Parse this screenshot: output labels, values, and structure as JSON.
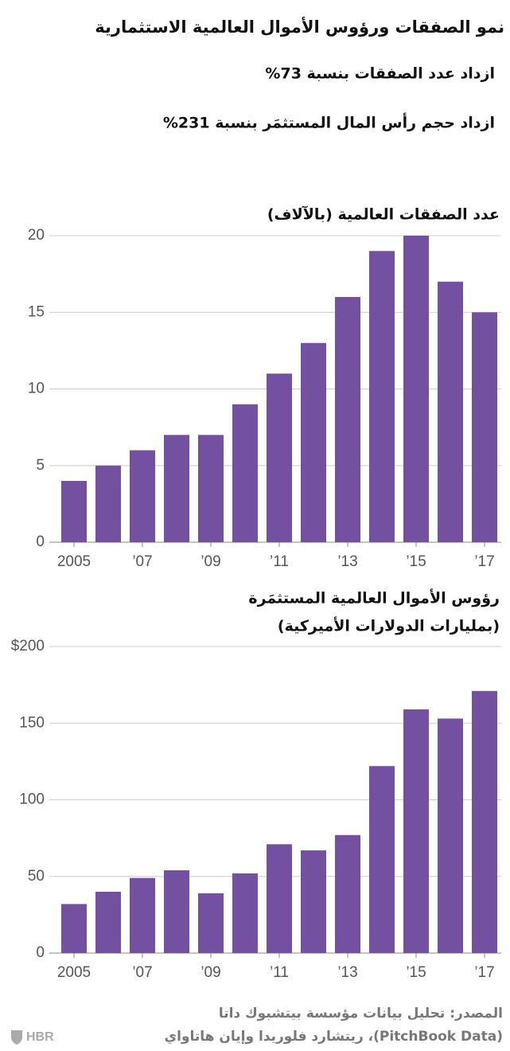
{
  "header": {
    "title": "نمو الصفقات ورؤوس الأموال العالمية الاستثمارية",
    "notes": [
      "ازداد عدد الصفقات بنسبة 73%",
      "ازداد حجم رأس المال المستثمَر بنسبة 231%"
    ]
  },
  "chart_data": [
    {
      "type": "bar",
      "title": "عدد الصفقات العالمية (بالآلاف)",
      "categories": [
        "2005",
        null,
        "’07",
        null,
        "’09",
        null,
        "’11",
        null,
        "’13",
        null,
        "’15",
        null,
        "’17"
      ],
      "values": [
        4,
        5,
        6,
        7,
        7,
        9,
        11,
        13,
        16,
        19,
        20,
        17,
        15
      ],
      "color": "#7350a0",
      "ylim": [
        0,
        20
      ],
      "yticks": [
        0,
        5,
        10,
        15,
        20
      ],
      "grid": true
    },
    {
      "type": "bar",
      "title": "رؤوس الأموال العالمية المستثمَرة",
      "subtitle": "(بمليارات الدولارات الأميركية)",
      "categories": [
        "2005",
        null,
        "’07",
        null,
        "’09",
        null,
        "’11",
        null,
        "’13",
        null,
        "’15",
        null,
        "’17"
      ],
      "values": [
        32,
        40,
        49,
        54,
        39,
        52,
        71,
        67,
        77,
        122,
        159,
        153,
        171
      ],
      "color": "#7350a0",
      "ylim": [
        0,
        200
      ],
      "yticks": [
        0,
        50,
        100,
        150,
        {
          "value": 200,
          "label": "$200"
        }
      ],
      "grid": true
    }
  ],
  "source": [
    "المصدر: تحليل بيانات مؤسسة بيتشبوك داتا",
    "(PitchBook Data)، ريتشارد فلوريدا وإيان هاتاواي"
  ],
  "logo": "HBR"
}
